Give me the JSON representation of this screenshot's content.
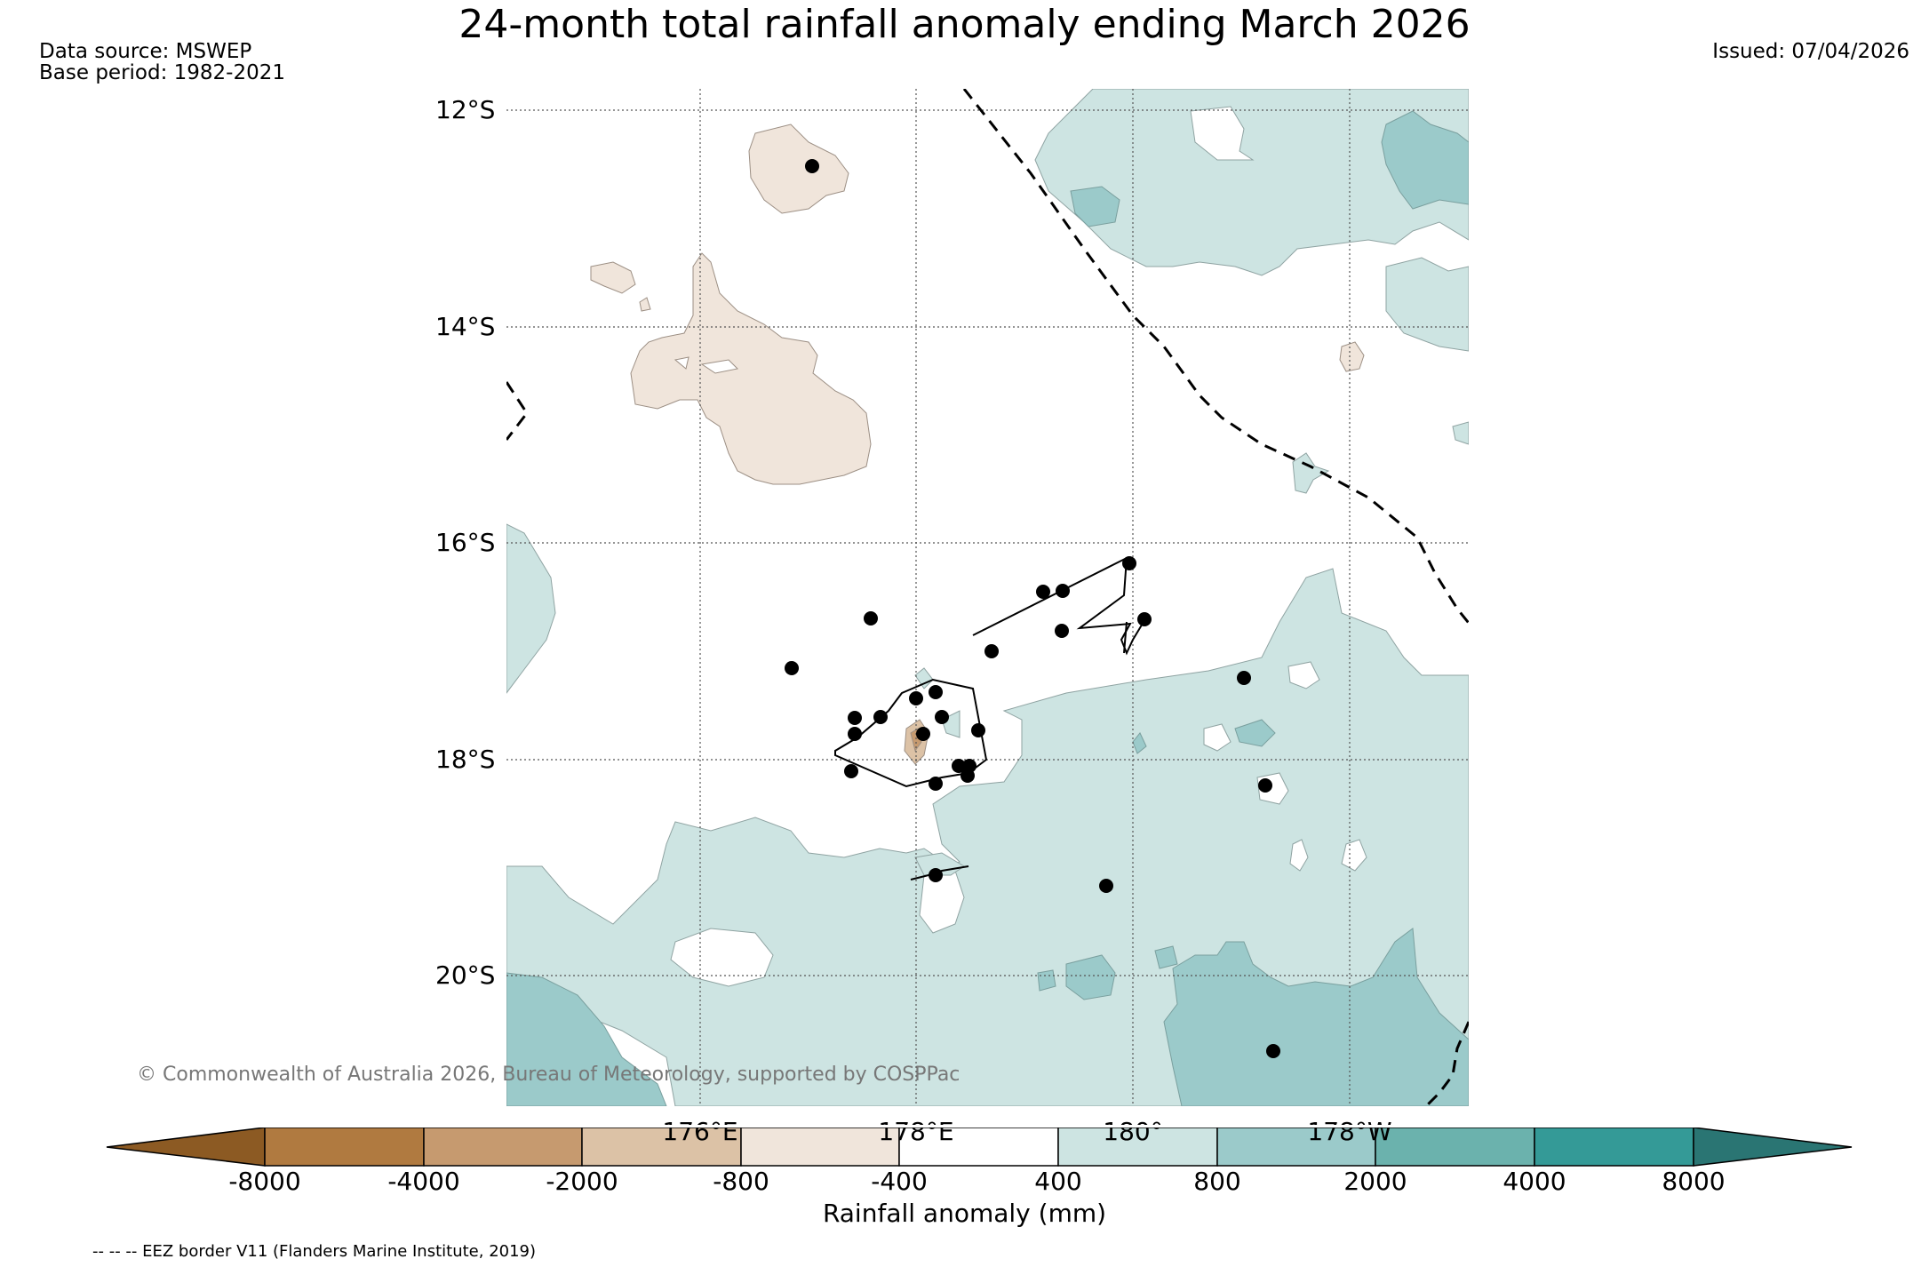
{
  "title": "24-month total rainfall anomaly ending March 2026",
  "data_source": "Data source: MSWEP",
  "base_period": "Base period: 1982-2021",
  "issued": "Issued: 07/04/2026",
  "lat_labels": [
    "12°S",
    "14°S",
    "16°S",
    "18°S",
    "20°S"
  ],
  "lon_labels": [
    "176°E",
    "178°E",
    "180°",
    "178°W"
  ],
  "copyright": "© Commonwealth of Australia 2026, Bureau of Meteorology, supported by COSPPac",
  "colorbar": {
    "title": "Rainfall anomaly (mm)",
    "tick_labels": [
      "-8000",
      "-4000",
      "-2000",
      "-800",
      "-400",
      "400",
      "800",
      "2000",
      "4000",
      "8000"
    ],
    "colors": [
      "#8c5a23",
      "#b07a40",
      "#c69a6f",
      "#dcc2a6",
      "#f0e5db",
      "#ffffff",
      "#cde4e2",
      "#9bcaca",
      "#6bb2ad",
      "#349a97",
      "#2a7573"
    ]
  },
  "eez_note": "-- -- -- EEZ border V11 (Flanders Marine Institute, 2019)"
}
